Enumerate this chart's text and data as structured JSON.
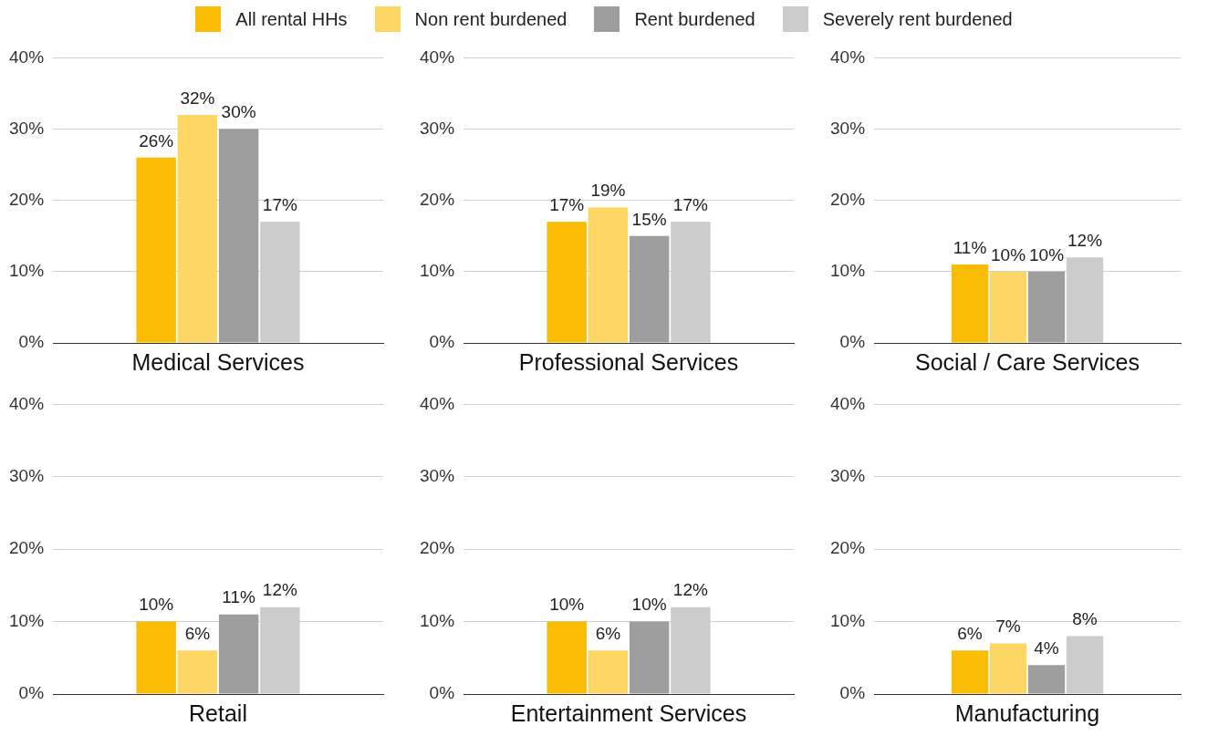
{
  "chart_data": [
    {
      "type": "bar",
      "categories": [
        "Medical Services"
      ],
      "ylim": [
        0,
        40
      ],
      "yticks": [
        {
          "value": 0,
          "label": "0%"
        },
        {
          "value": 10,
          "label": "10%"
        },
        {
          "value": 20,
          "label": "20%"
        },
        {
          "value": 30,
          "label": "30%"
        },
        {
          "value": 40,
          "label": "40%"
        }
      ],
      "grid": "y",
      "legend": "top",
      "series": [
        {
          "name": "All rental HHs",
          "color": "#fbbc04",
          "values": [
            26
          ],
          "value_labels": [
            "26%"
          ]
        },
        {
          "name": "Non rent burdened",
          "color": "#fdd663",
          "values": [
            32
          ],
          "value_labels": [
            "32%"
          ]
        },
        {
          "name": "Rent burdened",
          "color": "#9e9e9e",
          "values": [
            30
          ],
          "value_labels": [
            "30%"
          ]
        },
        {
          "name": "Severely rent burdened",
          "color": "#cccccc",
          "values": [
            17
          ],
          "value_labels": [
            "17%"
          ]
        }
      ]
    },
    {
      "type": "bar",
      "categories": [
        "Professional Services"
      ],
      "ylim": [
        0,
        40
      ],
      "yticks": [
        {
          "value": 0,
          "label": "0%"
        },
        {
          "value": 10,
          "label": "10%"
        },
        {
          "value": 20,
          "label": "20%"
        },
        {
          "value": 30,
          "label": "30%"
        },
        {
          "value": 40,
          "label": "40%"
        }
      ],
      "grid": "y",
      "series": [
        {
          "color": "#fbbc04",
          "values": [
            17
          ],
          "value_labels": [
            "17%"
          ]
        },
        {
          "color": "#fdd663",
          "values": [
            19
          ],
          "value_labels": [
            "19%"
          ]
        },
        {
          "color": "#9e9e9e",
          "values": [
            15
          ],
          "value_labels": [
            "15%"
          ]
        },
        {
          "color": "#cccccc",
          "values": [
            17
          ],
          "value_labels": [
            "17%"
          ]
        }
      ]
    },
    {
      "type": "bar",
      "categories": [
        "Social / Care Services"
      ],
      "ylim": [
        0,
        40
      ],
      "yticks": [
        {
          "value": 0,
          "label": "0%"
        },
        {
          "value": 10,
          "label": "10%"
        },
        {
          "value": 20,
          "label": "20%"
        },
        {
          "value": 30,
          "label": "30%"
        },
        {
          "value": 40,
          "label": "40%"
        }
      ],
      "grid": "y",
      "series": [
        {
          "color": "#fbbc04",
          "values": [
            11
          ],
          "value_labels": [
            "11%"
          ]
        },
        {
          "color": "#fdd663",
          "values": [
            10
          ],
          "value_labels": [
            "10%"
          ]
        },
        {
          "color": "#9e9e9e",
          "values": [
            10
          ],
          "value_labels": [
            "10%"
          ]
        },
        {
          "color": "#cccccc",
          "values": [
            12
          ],
          "value_labels": [
            "12%"
          ]
        }
      ]
    },
    {
      "type": "bar",
      "categories": [
        "Retail"
      ],
      "ylim": [
        0,
        40
      ],
      "yticks": [
        {
          "value": 0,
          "label": "0%"
        },
        {
          "value": 10,
          "label": "10%"
        },
        {
          "value": 20,
          "label": "20%"
        },
        {
          "value": 30,
          "label": "30%"
        },
        {
          "value": 40,
          "label": "40%"
        }
      ],
      "grid": "y",
      "series": [
        {
          "color": "#fbbc04",
          "values": [
            10
          ],
          "value_labels": [
            "10%"
          ]
        },
        {
          "color": "#fdd663",
          "values": [
            6
          ],
          "value_labels": [
            "6%"
          ]
        },
        {
          "color": "#9e9e9e",
          "values": [
            11
          ],
          "value_labels": [
            "11%"
          ]
        },
        {
          "color": "#cccccc",
          "values": [
            12
          ],
          "value_labels": [
            "12%"
          ]
        }
      ]
    },
    {
      "type": "bar",
      "categories": [
        "Entertainment Services"
      ],
      "ylim": [
        0,
        40
      ],
      "yticks": [
        {
          "value": 0,
          "label": "0%"
        },
        {
          "value": 10,
          "label": "10%"
        },
        {
          "value": 20,
          "label": "20%"
        },
        {
          "value": 30,
          "label": "30%"
        },
        {
          "value": 40,
          "label": "40%"
        }
      ],
      "grid": "y",
      "series": [
        {
          "color": "#fbbc04",
          "values": [
            10
          ],
          "value_labels": [
            "10%"
          ]
        },
        {
          "color": "#fdd663",
          "values": [
            6
          ],
          "value_labels": [
            "6%"
          ]
        },
        {
          "color": "#9e9e9e",
          "values": [
            10
          ],
          "value_labels": [
            "10%"
          ]
        },
        {
          "color": "#cccccc",
          "values": [
            12
          ],
          "value_labels": [
            "12%"
          ]
        }
      ]
    },
    {
      "type": "bar",
      "categories": [
        "Manufacturing"
      ],
      "ylim": [
        0,
        40
      ],
      "yticks": [
        {
          "value": 0,
          "label": "0%"
        },
        {
          "value": 10,
          "label": "10%"
        },
        {
          "value": 20,
          "label": "20%"
        },
        {
          "value": 30,
          "label": "30%"
        },
        {
          "value": 40,
          "label": "40%"
        }
      ],
      "grid": "y",
      "series": [
        {
          "color": "#fbbc04",
          "values": [
            6
          ],
          "value_labels": [
            "6%"
          ]
        },
        {
          "color": "#fdd663",
          "values": [
            7
          ],
          "value_labels": [
            "7%"
          ]
        },
        {
          "color": "#9e9e9e",
          "values": [
            4
          ],
          "value_labels": [
            "4%"
          ]
        },
        {
          "color": "#cccccc",
          "values": [
            8
          ],
          "value_labels": [
            "8%"
          ]
        }
      ]
    }
  ]
}
